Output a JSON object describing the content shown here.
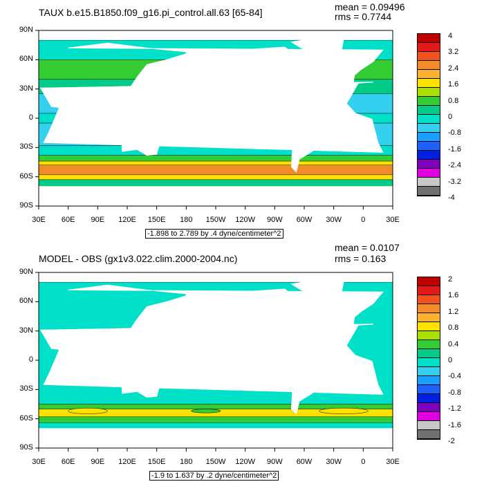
{
  "panels": [
    {
      "title": "TAUX b.e15.B1850.f09_g16.pi_control.all.63 [65-84]",
      "mean": "mean = 0.09496",
      "rms": "rms = 0.7744",
      "range": "-1.898 to 2.789 by .4 dyne/centimeter^2",
      "lat_labels": [
        "90N",
        "60N",
        "30N",
        "0",
        "30S",
        "60S",
        "90S"
      ],
      "lon_labels": [
        "30E",
        "60E",
        "90E",
        "120E",
        "150E",
        "180",
        "150W",
        "120W",
        "90W",
        "60W",
        "30W",
        "0",
        "30E"
      ],
      "colorbar": {
        "labels": [
          "4",
          "3.2",
          "2.4",
          "1.6",
          "0.8",
          "0",
          "-0.8",
          "-1.6",
          "-2.4",
          "-3.2",
          "-4"
        ],
        "colors": [
          "#c00000",
          "#e31a1c",
          "#f4511e",
          "#f28c28",
          "#f9b233",
          "#ffe100",
          "#a8e000",
          "#33cc33",
          "#00cc88",
          "#00e0c8",
          "#33d0f0",
          "#1ca0ff",
          "#1c60ff",
          "#0020e0",
          "#8000c0",
          "#e000e0",
          "#c8c8c8",
          "#707070"
        ]
      }
    },
    {
      "title": "MODEL - OBS (gx1v3.022.clim.2000-2004.nc)",
      "mean": "mean = 0.0107",
      "rms": "rms = 0.163",
      "range": "-1.9 to 1.637 by .2 dyne/centimeter^2",
      "lat_labels": [
        "90N",
        "60N",
        "30N",
        "0",
        "30S",
        "60S",
        "90S"
      ],
      "lon_labels": [
        "30E",
        "60E",
        "90E",
        "120E",
        "150E",
        "180",
        "150W",
        "120W",
        "90W",
        "60W",
        "30W",
        "0",
        "30E"
      ],
      "colorbar": {
        "labels": [
          "2",
          "1.6",
          "1.2",
          "0.8",
          "0.4",
          "0",
          "-0.4",
          "-0.8",
          "-1.2",
          "-1.6",
          "-2"
        ],
        "colors": [
          "#c00000",
          "#e31a1c",
          "#f4511e",
          "#f28c28",
          "#f9b233",
          "#ffe100",
          "#a8e000",
          "#33cc33",
          "#00cc88",
          "#00e0c8",
          "#33d0f0",
          "#1ca0ff",
          "#1c60ff",
          "#0020e0",
          "#8000c0",
          "#e000e0",
          "#c8c8c8",
          "#707070"
        ]
      }
    }
  ]
}
